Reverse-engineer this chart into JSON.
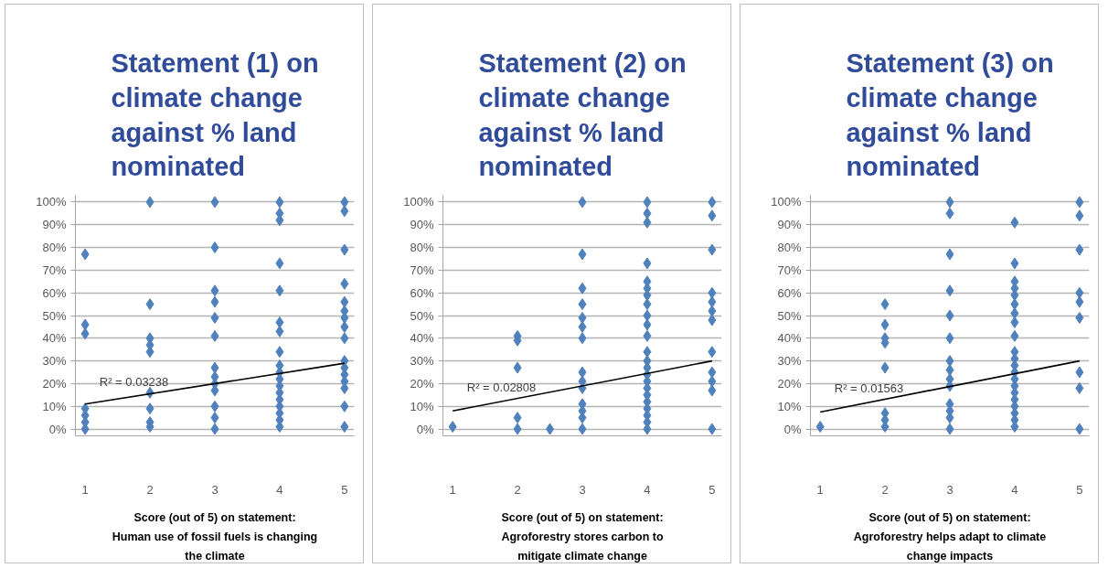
{
  "chart_data": [
    {
      "type": "scatter",
      "title": "Statement (1) on climate change against % land nominated",
      "xlabel": "Score (out of 5) on statement:\nHuman use of fossil fuels is changing\nthe climate",
      "xlim": [
        0.85,
        5.15
      ],
      "xticks": [
        1,
        2,
        3,
        4,
        5
      ],
      "ylim": [
        -3,
        103
      ],
      "yticks": [
        {
          "value": 0,
          "label": "0%"
        },
        {
          "value": 10,
          "label": "10%"
        },
        {
          "value": 20,
          "label": "20%"
        },
        {
          "value": 30,
          "label": "30%"
        },
        {
          "value": 40,
          "label": "40%"
        },
        {
          "value": 50,
          "label": "50%"
        },
        {
          "value": 60,
          "label": "60%"
        },
        {
          "value": 70,
          "label": "70%"
        },
        {
          "value": 80,
          "label": "80%"
        },
        {
          "value": 90,
          "label": "90%"
        },
        {
          "value": 100,
          "label": "100%"
        }
      ],
      "grid": "y",
      "series": [
        {
          "color": "#4f81bd",
          "marker": "diamond",
          "x": [
            1,
            1,
            1,
            1,
            1,
            1,
            1,
            2,
            2,
            2,
            2,
            2,
            2,
            2,
            2,
            2,
            3,
            3,
            3,
            3,
            3,
            3,
            3,
            3,
            3,
            3,
            3,
            3,
            3,
            4,
            4,
            4,
            4,
            4,
            4,
            4,
            4,
            4,
            4,
            4,
            4,
            4,
            4,
            4,
            4,
            4,
            4,
            5,
            5,
            5,
            5,
            5,
            5,
            5,
            5,
            5,
            5,
            5,
            5,
            5,
            5,
            5,
            5
          ],
          "values": [
            77,
            46,
            42,
            9,
            6,
            3,
            0,
            100,
            55,
            40,
            37,
            34,
            16,
            9,
            3,
            1,
            100,
            80,
            61,
            56,
            49,
            41,
            27,
            23,
            20,
            17,
            10,
            5,
            0,
            100,
            95,
            92,
            73,
            61,
            47,
            43,
            34,
            28,
            25,
            22,
            19,
            16,
            13,
            10,
            7,
            4,
            1,
            100,
            96,
            79,
            64,
            56,
            52,
            49,
            45,
            40,
            30,
            27,
            24,
            21,
            18,
            10,
            1
          ]
        },
        {
          "type": "line",
          "color": "#000000",
          "marker": "none",
          "x": [
            1,
            5
          ],
          "values": [
            11,
            29
          ]
        }
      ],
      "annotations": [
        "R² = 0.03238"
      ]
    },
    {
      "type": "scatter",
      "title": "Statement (2) on climate change against % land nominated",
      "xlabel": "Score (out of 5) on statement:\nAgroforestry stores carbon to\nmitigate climate change",
      "xlim": [
        0.85,
        5.15
      ],
      "xticks": [
        1,
        2,
        3,
        4,
        5
      ],
      "ylim": [
        -3,
        103
      ],
      "yticks": [
        {
          "value": 0,
          "label": "0%"
        },
        {
          "value": 10,
          "label": "10%"
        },
        {
          "value": 20,
          "label": "20%"
        },
        {
          "value": 30,
          "label": "30%"
        },
        {
          "value": 40,
          "label": "40%"
        },
        {
          "value": 50,
          "label": "50%"
        },
        {
          "value": 60,
          "label": "60%"
        },
        {
          "value": 70,
          "label": "70%"
        },
        {
          "value": 80,
          "label": "80%"
        },
        {
          "value": 90,
          "label": "90%"
        },
        {
          "value": 100,
          "label": "100%"
        }
      ],
      "grid": "y",
      "series": [
        {
          "color": "#4f81bd",
          "marker": "diamond",
          "x": [
            1,
            2,
            2,
            2,
            2,
            2,
            2.5,
            3,
            3,
            3,
            3,
            3,
            3,
            3,
            3,
            3,
            3,
            3,
            3,
            3,
            3,
            4,
            4,
            4,
            4,
            4,
            4,
            4,
            4,
            4,
            4,
            4,
            4,
            4,
            4,
            4,
            4,
            4,
            4,
            4,
            4,
            4,
            4,
            4,
            5,
            5,
            5,
            5,
            5,
            5,
            5,
            5,
            5,
            5,
            5,
            5
          ],
          "values": [
            1,
            41,
            39,
            27,
            5,
            0,
            0,
            100,
            77,
            62,
            55,
            49,
            45,
            40,
            25,
            21,
            18,
            11,
            8,
            5,
            0,
            100,
            95,
            91,
            73,
            65,
            62,
            59,
            55,
            50,
            46,
            41,
            34,
            30,
            27,
            24,
            21,
            18,
            15,
            12,
            9,
            6,
            3,
            0,
            100,
            94,
            79,
            60,
            56,
            52,
            48,
            34,
            25,
            21,
            17,
            0
          ]
        },
        {
          "type": "line",
          "color": "#000000",
          "marker": "none",
          "x": [
            1,
            5
          ],
          "values": [
            8,
            30
          ]
        }
      ],
      "annotations": [
        "R² = 0.02808"
      ]
    },
    {
      "type": "scatter",
      "title": "Statement (3) on climate change against % land nominated",
      "xlabel": "Score (out of 5) on statement:\nAgroforestry helps adapt to climate\nchange impacts",
      "xlim": [
        0.85,
        5.15
      ],
      "xticks": [
        1,
        2,
        3,
        4,
        5
      ],
      "ylim": [
        -3,
        103
      ],
      "yticks": [
        {
          "value": 0,
          "label": "0%"
        },
        {
          "value": 10,
          "label": "10%"
        },
        {
          "value": 20,
          "label": "20%"
        },
        {
          "value": 30,
          "label": "30%"
        },
        {
          "value": 40,
          "label": "40%"
        },
        {
          "value": 50,
          "label": "50%"
        },
        {
          "value": 60,
          "label": "60%"
        },
        {
          "value": 70,
          "label": "70%"
        },
        {
          "value": 80,
          "label": "80%"
        },
        {
          "value": 90,
          "label": "90%"
        },
        {
          "value": 100,
          "label": "100%"
        }
      ],
      "grid": "y",
      "series": [
        {
          "color": "#4f81bd",
          "marker": "diamond",
          "x": [
            1,
            2,
            2,
            2,
            2,
            2,
            2,
            2,
            2,
            3,
            3,
            3,
            3,
            3,
            3,
            3,
            3,
            3,
            3,
            3,
            3,
            3,
            3,
            4,
            4,
            4,
            4,
            4,
            4,
            4,
            4,
            4,
            4,
            4,
            4,
            4,
            4,
            4,
            4,
            4,
            4,
            4,
            4,
            4,
            5,
            5,
            5,
            5,
            5,
            5,
            5,
            5,
            5
          ],
          "values": [
            1,
            55,
            46,
            40,
            38,
            27,
            7,
            4,
            1,
            100,
            95,
            77,
            61,
            50,
            40,
            30,
            26,
            22,
            19,
            11,
            8,
            5,
            0,
            91,
            73,
            65,
            62,
            59,
            55,
            51,
            47,
            41,
            34,
            31,
            28,
            25,
            22,
            19,
            16,
            13,
            10,
            7,
            4,
            1,
            100,
            94,
            79,
            60,
            56,
            49,
            25,
            18,
            0
          ]
        },
        {
          "type": "line",
          "color": "#000000",
          "marker": "none",
          "x": [
            1,
            5
          ],
          "values": [
            7.5,
            30
          ]
        }
      ],
      "annotations": [
        "R² = 0.01563"
      ]
    }
  ]
}
